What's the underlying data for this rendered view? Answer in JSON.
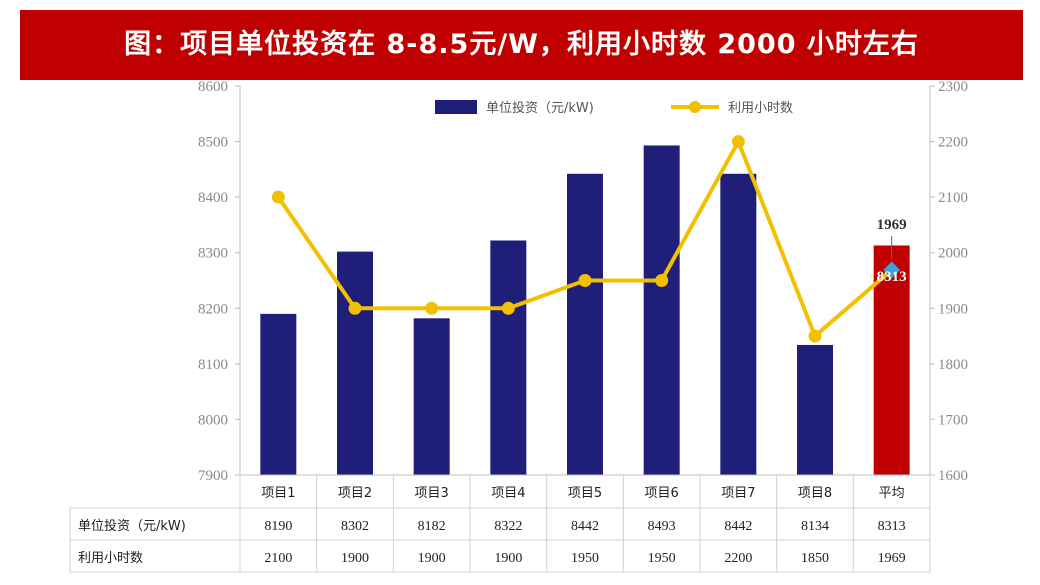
{
  "banner": {
    "title": "图：项目单位投资在 8-8.5元/W，利用小时数 2000 小时左右"
  },
  "colors": {
    "bar": "#1f1f7a",
    "bar_highlight": "#c00000",
    "line": "#f2c000",
    "marker_highlight": "#3aa0d8",
    "banner": "#c00000"
  },
  "chart_data": {
    "type": "bar",
    "categories": [
      "项目1",
      "项目2",
      "项目3",
      "项目4",
      "项目5",
      "项目6",
      "项目7",
      "项目8",
      "平均"
    ],
    "series": [
      {
        "name": "单位投资（元/kW)",
        "type": "bar",
        "axis": "left",
        "values": [
          8190,
          8302,
          8182,
          8322,
          8442,
          8493,
          8442,
          8134,
          8313
        ]
      },
      {
        "name": "利用小时数",
        "type": "line",
        "axis": "right",
        "values": [
          2100,
          1900,
          1900,
          1900,
          1950,
          1950,
          2200,
          1850,
          1969
        ]
      }
    ],
    "ylim_left": [
      7900,
      8600
    ],
    "ylim_right": [
      1600,
      2300
    ],
    "yticks_left": [
      "7900",
      "8000",
      "8100",
      "8200",
      "8300",
      "8400",
      "8500",
      "8600"
    ],
    "yticks_right": [
      "1600",
      "1700",
      "1800",
      "1900",
      "2000",
      "2100",
      "2200",
      "2300"
    ],
    "annotations": {
      "avg_hours_label": "1969",
      "avg_invest_label": "8313"
    },
    "legend": {
      "bar_label": "单位投资（元/kW)",
      "line_label": "利用小时数"
    },
    "table": {
      "row_headers": [
        "单位投资（元/kW)",
        "利用小时数"
      ],
      "rows": [
        [
          "8190",
          "8302",
          "8182",
          "8322",
          "8442",
          "8493",
          "8442",
          "8134",
          "8313"
        ],
        [
          "2100",
          "1900",
          "1900",
          "1900",
          "1950",
          "1950",
          "2200",
          "1850",
          "1969"
        ]
      ]
    }
  }
}
